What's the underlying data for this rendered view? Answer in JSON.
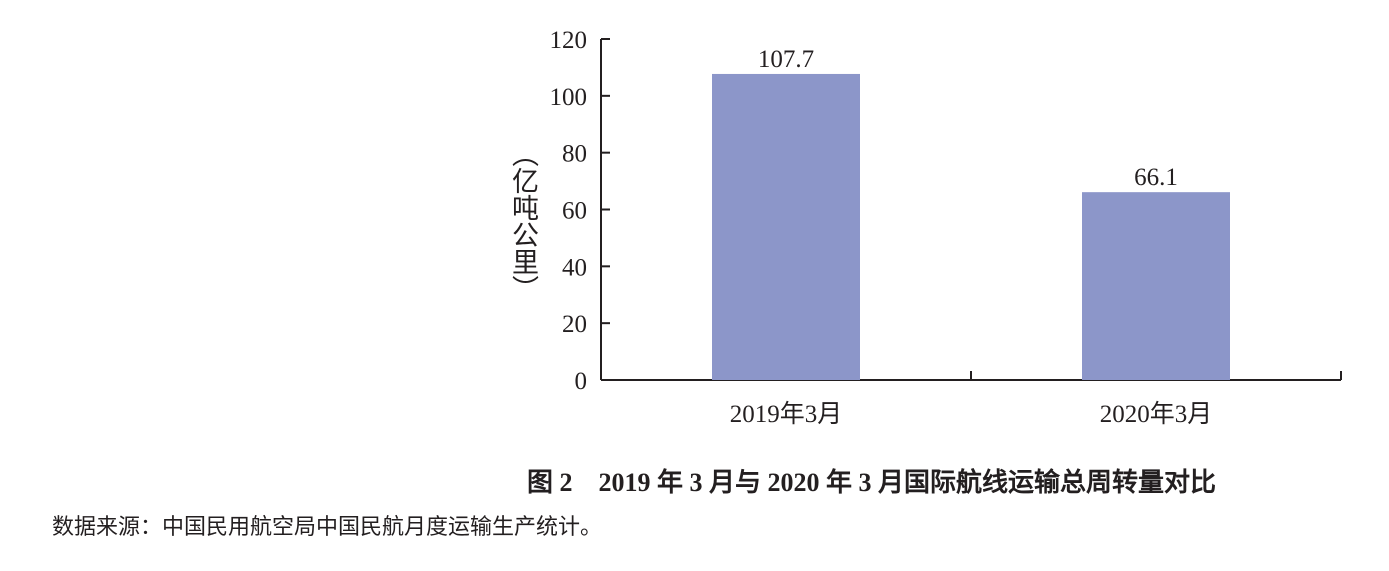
{
  "chart_data": {
    "type": "bar",
    "title": "图 2　2019 年 3 月与 2020 年 3 月国际航线运输总周转量对比",
    "xlabel": "",
    "ylabel": "（亿吨公里）",
    "categories": [
      "2019年3月",
      "2020年3月"
    ],
    "values": [
      107.7,
      66.1
    ],
    "data_labels": [
      "107.7",
      "66.1"
    ],
    "ylim": [
      0,
      120
    ],
    "yticks": [
      0,
      20,
      40,
      60,
      80,
      100,
      120
    ],
    "grid": false,
    "bar_color": "#8c96c9"
  },
  "source": "数据来源：中国民用航空局中国民航月度运输生产统计。"
}
